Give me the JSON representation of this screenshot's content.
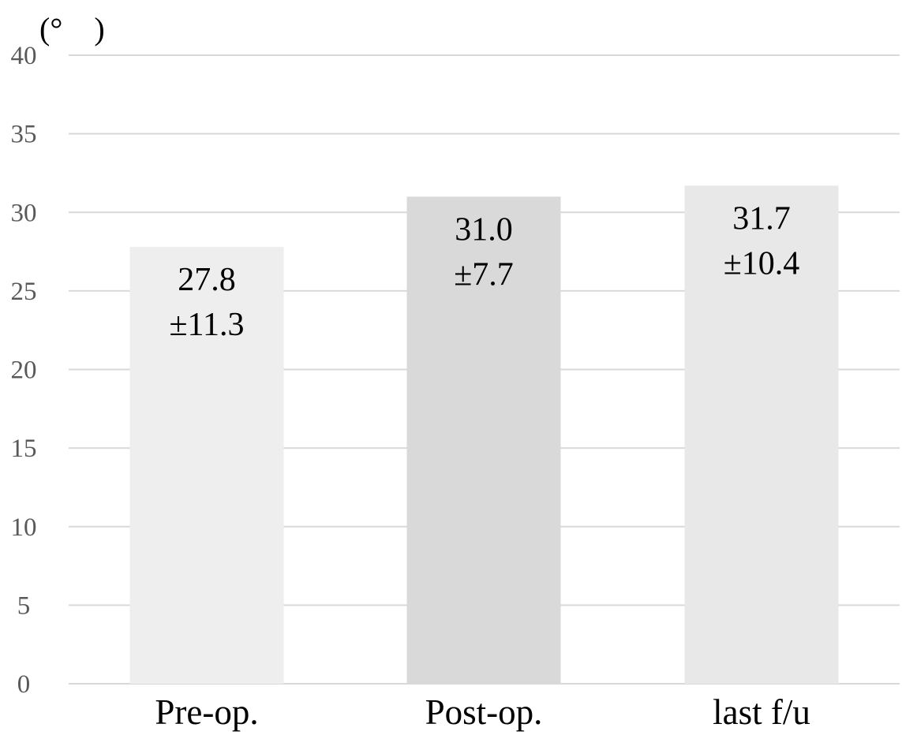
{
  "chart_data": {
    "type": "bar",
    "unit_label": "(°　)",
    "categories": [
      "Pre-op.",
      "Post-op.",
      "last f/u"
    ],
    "values": [
      27.8,
      31.0,
      31.7
    ],
    "value_labels": [
      "27.8",
      "31.0",
      "31.7"
    ],
    "sd_labels": [
      "±11.3",
      "±7.7",
      "±10.4"
    ],
    "ylim": [
      0,
      40
    ],
    "yticks": [
      0,
      5,
      10,
      15,
      20,
      25,
      30,
      35,
      40
    ],
    "ytick_labels": [
      "0",
      "5",
      "10",
      "15",
      "20",
      "25",
      "30",
      "35",
      "40"
    ],
    "grid": true,
    "legend": "none",
    "colors": {
      "bars": [
        "#eeeeee",
        "#d9d9d9",
        "#e8e8e8"
      ],
      "grid": "#d9d9d9",
      "tick_text": "#595959",
      "label_text": "#000000"
    }
  }
}
